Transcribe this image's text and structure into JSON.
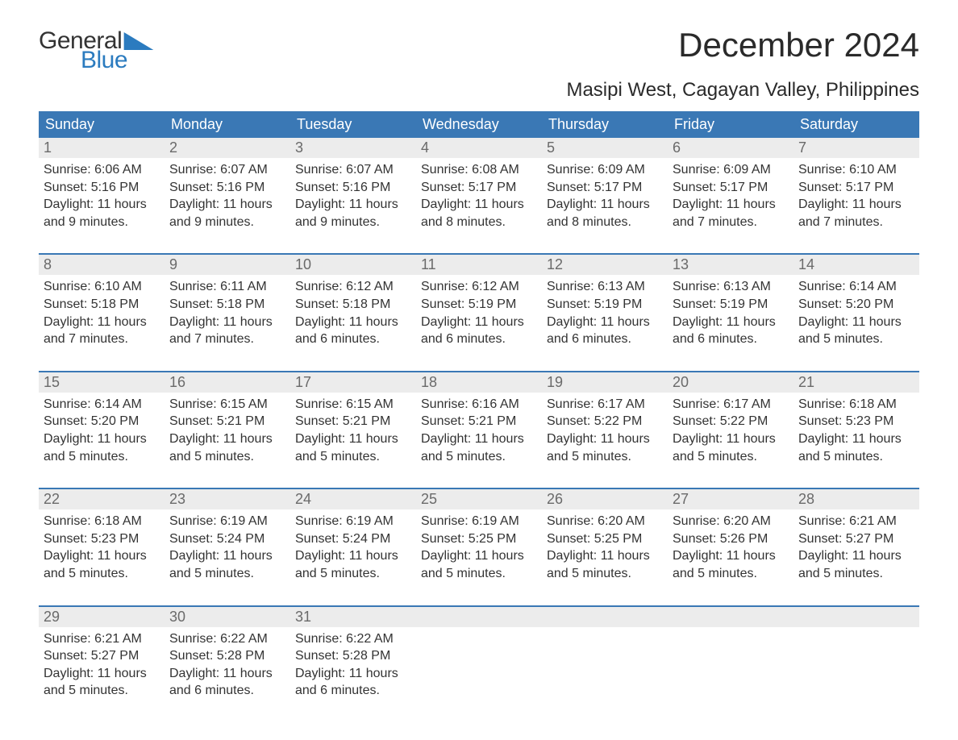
{
  "logo": {
    "text_general": "General",
    "text_blue": "Blue",
    "triangle_color": "#2b7bbf"
  },
  "title": "December 2024",
  "location": "Masipi West, Cagayan Valley, Philippines",
  "colors": {
    "header_bg": "#3a78b5",
    "header_text": "#ffffff",
    "daynum_bg": "#ececec",
    "daynum_text": "#6a6a6a",
    "body_text": "#333333",
    "rule": "#3a78b5",
    "page_bg": "#ffffff",
    "logo_blue": "#2b7bbf"
  },
  "typography": {
    "title_fontsize_pt": 32,
    "location_fontsize_pt": 18,
    "header_fontsize_pt": 14,
    "daynum_fontsize_pt": 14,
    "body_fontsize_pt": 12,
    "logo_fontsize_pt": 22
  },
  "layout": {
    "columns": 7,
    "rows_of_weeks": 5,
    "aspect_w": 1188,
    "aspect_h": 918
  },
  "day_labels": [
    "Sunday",
    "Monday",
    "Tuesday",
    "Wednesday",
    "Thursday",
    "Friday",
    "Saturday"
  ],
  "weeks": [
    [
      {
        "n": "1",
        "sr": "Sunrise: 6:06 AM",
        "ss": "Sunset: 5:16 PM",
        "d1": "Daylight: 11 hours",
        "d2": "and 9 minutes."
      },
      {
        "n": "2",
        "sr": "Sunrise: 6:07 AM",
        "ss": "Sunset: 5:16 PM",
        "d1": "Daylight: 11 hours",
        "d2": "and 9 minutes."
      },
      {
        "n": "3",
        "sr": "Sunrise: 6:07 AM",
        "ss": "Sunset: 5:16 PM",
        "d1": "Daylight: 11 hours",
        "d2": "and 9 minutes."
      },
      {
        "n": "4",
        "sr": "Sunrise: 6:08 AM",
        "ss": "Sunset: 5:17 PM",
        "d1": "Daylight: 11 hours",
        "d2": "and 8 minutes."
      },
      {
        "n": "5",
        "sr": "Sunrise: 6:09 AM",
        "ss": "Sunset: 5:17 PM",
        "d1": "Daylight: 11 hours",
        "d2": "and 8 minutes."
      },
      {
        "n": "6",
        "sr": "Sunrise: 6:09 AM",
        "ss": "Sunset: 5:17 PM",
        "d1": "Daylight: 11 hours",
        "d2": "and 7 minutes."
      },
      {
        "n": "7",
        "sr": "Sunrise: 6:10 AM",
        "ss": "Sunset: 5:17 PM",
        "d1": "Daylight: 11 hours",
        "d2": "and 7 minutes."
      }
    ],
    [
      {
        "n": "8",
        "sr": "Sunrise: 6:10 AM",
        "ss": "Sunset: 5:18 PM",
        "d1": "Daylight: 11 hours",
        "d2": "and 7 minutes."
      },
      {
        "n": "9",
        "sr": "Sunrise: 6:11 AM",
        "ss": "Sunset: 5:18 PM",
        "d1": "Daylight: 11 hours",
        "d2": "and 7 minutes."
      },
      {
        "n": "10",
        "sr": "Sunrise: 6:12 AM",
        "ss": "Sunset: 5:18 PM",
        "d1": "Daylight: 11 hours",
        "d2": "and 6 minutes."
      },
      {
        "n": "11",
        "sr": "Sunrise: 6:12 AM",
        "ss": "Sunset: 5:19 PM",
        "d1": "Daylight: 11 hours",
        "d2": "and 6 minutes."
      },
      {
        "n": "12",
        "sr": "Sunrise: 6:13 AM",
        "ss": "Sunset: 5:19 PM",
        "d1": "Daylight: 11 hours",
        "d2": "and 6 minutes."
      },
      {
        "n": "13",
        "sr": "Sunrise: 6:13 AM",
        "ss": "Sunset: 5:19 PM",
        "d1": "Daylight: 11 hours",
        "d2": "and 6 minutes."
      },
      {
        "n": "14",
        "sr": "Sunrise: 6:14 AM",
        "ss": "Sunset: 5:20 PM",
        "d1": "Daylight: 11 hours",
        "d2": "and 5 minutes."
      }
    ],
    [
      {
        "n": "15",
        "sr": "Sunrise: 6:14 AM",
        "ss": "Sunset: 5:20 PM",
        "d1": "Daylight: 11 hours",
        "d2": "and 5 minutes."
      },
      {
        "n": "16",
        "sr": "Sunrise: 6:15 AM",
        "ss": "Sunset: 5:21 PM",
        "d1": "Daylight: 11 hours",
        "d2": "and 5 minutes."
      },
      {
        "n": "17",
        "sr": "Sunrise: 6:15 AM",
        "ss": "Sunset: 5:21 PM",
        "d1": "Daylight: 11 hours",
        "d2": "and 5 minutes."
      },
      {
        "n": "18",
        "sr": "Sunrise: 6:16 AM",
        "ss": "Sunset: 5:21 PM",
        "d1": "Daylight: 11 hours",
        "d2": "and 5 minutes."
      },
      {
        "n": "19",
        "sr": "Sunrise: 6:17 AM",
        "ss": "Sunset: 5:22 PM",
        "d1": "Daylight: 11 hours",
        "d2": "and 5 minutes."
      },
      {
        "n": "20",
        "sr": "Sunrise: 6:17 AM",
        "ss": "Sunset: 5:22 PM",
        "d1": "Daylight: 11 hours",
        "d2": "and 5 minutes."
      },
      {
        "n": "21",
        "sr": "Sunrise: 6:18 AM",
        "ss": "Sunset: 5:23 PM",
        "d1": "Daylight: 11 hours",
        "d2": "and 5 minutes."
      }
    ],
    [
      {
        "n": "22",
        "sr": "Sunrise: 6:18 AM",
        "ss": "Sunset: 5:23 PM",
        "d1": "Daylight: 11 hours",
        "d2": "and 5 minutes."
      },
      {
        "n": "23",
        "sr": "Sunrise: 6:19 AM",
        "ss": "Sunset: 5:24 PM",
        "d1": "Daylight: 11 hours",
        "d2": "and 5 minutes."
      },
      {
        "n": "24",
        "sr": "Sunrise: 6:19 AM",
        "ss": "Sunset: 5:24 PM",
        "d1": "Daylight: 11 hours",
        "d2": "and 5 minutes."
      },
      {
        "n": "25",
        "sr": "Sunrise: 6:19 AM",
        "ss": "Sunset: 5:25 PM",
        "d1": "Daylight: 11 hours",
        "d2": "and 5 minutes."
      },
      {
        "n": "26",
        "sr": "Sunrise: 6:20 AM",
        "ss": "Sunset: 5:25 PM",
        "d1": "Daylight: 11 hours",
        "d2": "and 5 minutes."
      },
      {
        "n": "27",
        "sr": "Sunrise: 6:20 AM",
        "ss": "Sunset: 5:26 PM",
        "d1": "Daylight: 11 hours",
        "d2": "and 5 minutes."
      },
      {
        "n": "28",
        "sr": "Sunrise: 6:21 AM",
        "ss": "Sunset: 5:27 PM",
        "d1": "Daylight: 11 hours",
        "d2": "and 5 minutes."
      }
    ],
    [
      {
        "n": "29",
        "sr": "Sunrise: 6:21 AM",
        "ss": "Sunset: 5:27 PM",
        "d1": "Daylight: 11 hours",
        "d2": "and 5 minutes."
      },
      {
        "n": "30",
        "sr": "Sunrise: 6:22 AM",
        "ss": "Sunset: 5:28 PM",
        "d1": "Daylight: 11 hours",
        "d2": "and 6 minutes."
      },
      {
        "n": "31",
        "sr": "Sunrise: 6:22 AM",
        "ss": "Sunset: 5:28 PM",
        "d1": "Daylight: 11 hours",
        "d2": "and 6 minutes."
      },
      null,
      null,
      null,
      null
    ]
  ]
}
